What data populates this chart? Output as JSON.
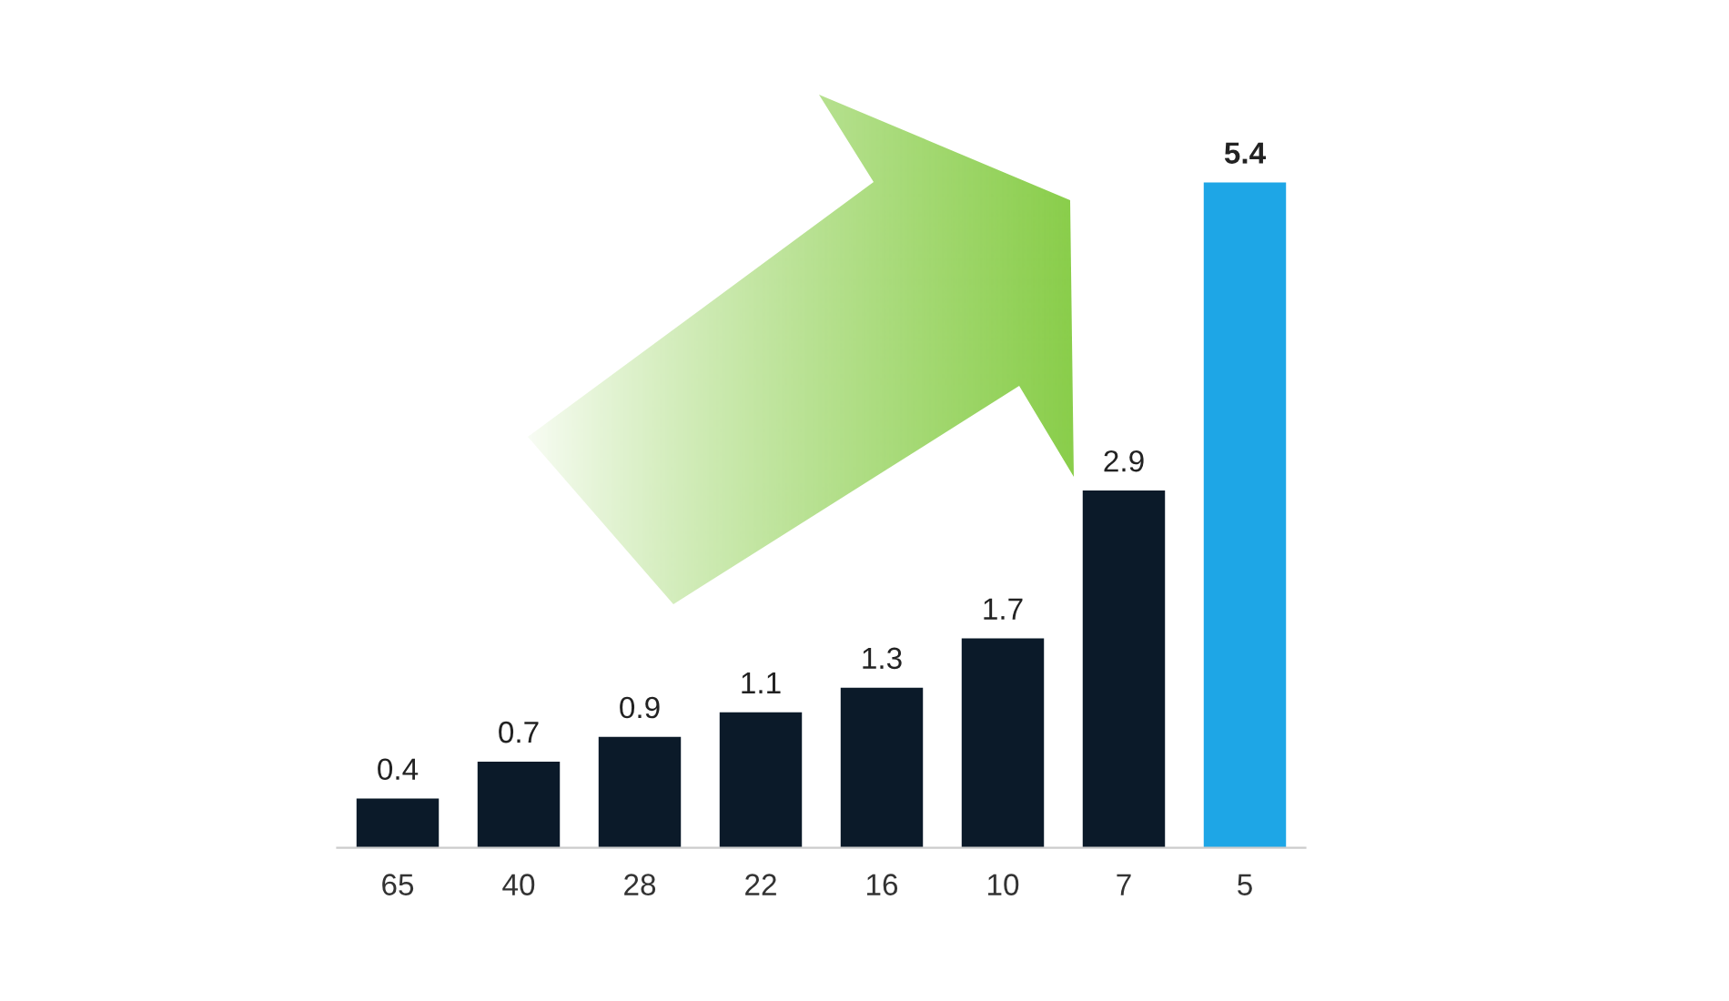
{
  "chart_data": {
    "type": "bar",
    "categories": [
      "65",
      "40",
      "28",
      "22",
      "16",
      "10",
      "7",
      "5"
    ],
    "values": [
      0.4,
      0.7,
      0.9,
      1.1,
      1.3,
      1.7,
      2.9,
      5.4
    ],
    "colors": [
      "#0b1a29",
      "#0b1a29",
      "#0b1a29",
      "#0b1a29",
      "#0b1a29",
      "#0b1a29",
      "#0b1a29",
      "#1ea6e6"
    ],
    "data_labels": true
  }
}
